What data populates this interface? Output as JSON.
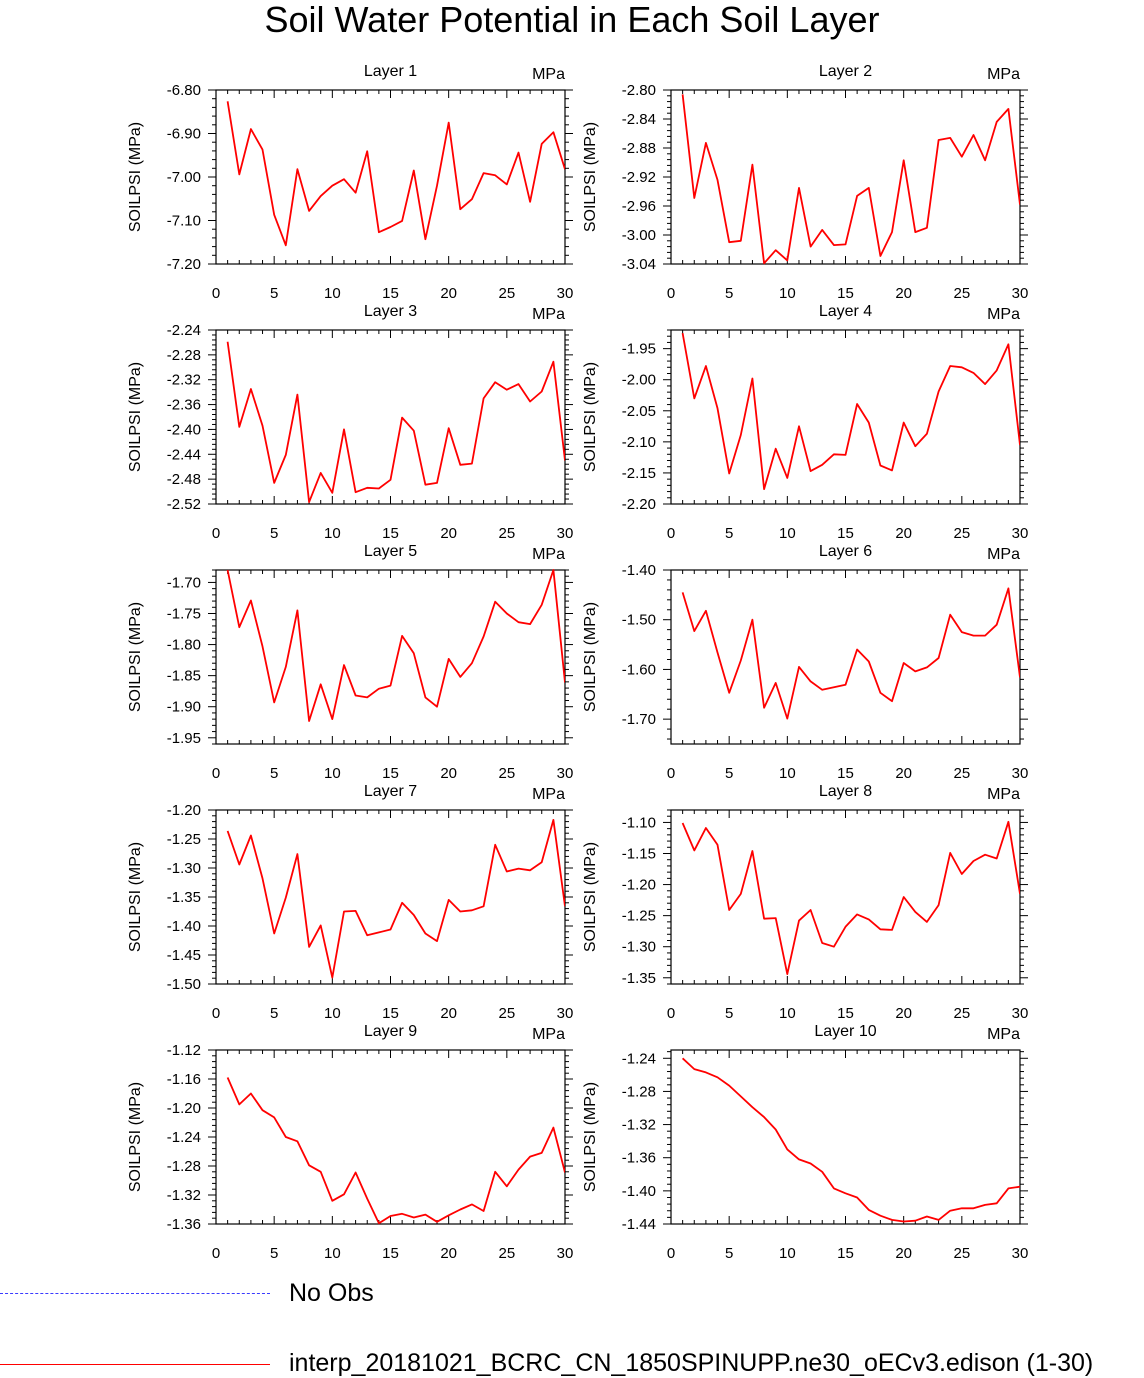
{
  "title": "Soil Water Potential in Each Soil Layer",
  "legend": {
    "items": [
      {
        "label": "No Obs",
        "color": "#3b3bff",
        "style": "dashed"
      },
      {
        "label": "interp_20181021_BCRC_CN_1850SPINUPP.ne30_oECv3.edison (1-30)",
        "color": "#ff0000",
        "style": "solid"
      }
    ]
  },
  "chart_data": [
    {
      "type": "line",
      "title": "Layer 1",
      "units": "MPa",
      "ylabel": "SOILPSI  (MPa)",
      "xlim": [
        0,
        30
      ],
      "ylim": [
        -7.2,
        -6.8
      ],
      "xticks": [
        0,
        5,
        10,
        15,
        20,
        25,
        30
      ],
      "yticks": [
        -6.8,
        -6.9,
        -7.0,
        -7.1,
        -7.2
      ],
      "ytick_labels": [
        "-6.80",
        "-6.90",
        "-7.00",
        "-7.10",
        "-7.20"
      ],
      "x": [
        1,
        2,
        3,
        4,
        5,
        6,
        7,
        8,
        9,
        10,
        11,
        12,
        13,
        14,
        15,
        16,
        17,
        18,
        19,
        20,
        21,
        22,
        23,
        24,
        25,
        26,
        27,
        28,
        29,
        30
      ],
      "values": [
        -6.826,
        -6.994,
        -6.89,
        -6.937,
        -7.087,
        -7.157,
        -6.982,
        -7.078,
        -7.044,
        -7.02,
        -7.005,
        -7.036,
        -6.941,
        -7.127,
        -7.115,
        -7.101,
        -6.985,
        -7.143,
        -7.02,
        -6.875,
        -7.074,
        -7.051,
        -6.991,
        -6.996,
        -7.017,
        -6.944,
        -7.057,
        -6.924,
        -6.897,
        -6.982
      ]
    },
    {
      "type": "line",
      "title": "Layer 2",
      "units": "MPa",
      "ylabel": "SOILPSI  (MPa)",
      "xlim": [
        0,
        30
      ],
      "ylim": [
        -3.04,
        -2.8
      ],
      "xticks": [
        0,
        5,
        10,
        15,
        20,
        25,
        30
      ],
      "yticks": [
        -2.8,
        -2.84,
        -2.88,
        -2.92,
        -2.96,
        -3.0,
        -3.04
      ],
      "ytick_labels": [
        "-2.80",
        "-2.84",
        "-2.88",
        "-2.92",
        "-2.96",
        "-3.00",
        "-3.04"
      ],
      "x": [
        1,
        2,
        3,
        4,
        5,
        6,
        7,
        8,
        9,
        10,
        11,
        12,
        13,
        14,
        15,
        16,
        17,
        18,
        19,
        20,
        21,
        22,
        23,
        24,
        25,
        26,
        27,
        28,
        29,
        30
      ],
      "values": [
        -2.806,
        -2.949,
        -2.873,
        -2.924,
        -3.01,
        -3.008,
        -2.903,
        -3.039,
        -3.021,
        -3.035,
        -2.935,
        -3.016,
        -2.993,
        -3.014,
        -3.013,
        -2.946,
        -2.935,
        -3.029,
        -2.996,
        -2.897,
        -2.996,
        -2.99,
        -2.869,
        -2.866,
        -2.892,
        -2.862,
        -2.897,
        -2.844,
        -2.826,
        -2.958
      ]
    },
    {
      "type": "line",
      "title": "Layer 3",
      "units": "MPa",
      "ylabel": "SOILPSI  (MPa)",
      "xlim": [
        0,
        30
      ],
      "ylim": [
        -2.52,
        -2.24
      ],
      "xticks": [
        0,
        5,
        10,
        15,
        20,
        25,
        30
      ],
      "yticks": [
        -2.24,
        -2.28,
        -2.32,
        -2.36,
        -2.4,
        -2.44,
        -2.48,
        -2.52
      ],
      "ytick_labels": [
        "-2.24",
        "-2.28",
        "-2.32",
        "-2.36",
        "-2.40",
        "-2.44",
        "-2.48",
        "-2.52"
      ],
      "x": [
        1,
        2,
        3,
        4,
        5,
        6,
        7,
        8,
        9,
        10,
        11,
        12,
        13,
        14,
        15,
        16,
        17,
        18,
        19,
        20,
        21,
        22,
        23,
        24,
        25,
        26,
        27,
        28,
        29,
        30
      ],
      "values": [
        -2.259,
        -2.396,
        -2.335,
        -2.394,
        -2.486,
        -2.441,
        -2.344,
        -2.517,
        -2.47,
        -2.502,
        -2.4,
        -2.501,
        -2.494,
        -2.495,
        -2.481,
        -2.381,
        -2.402,
        -2.489,
        -2.486,
        -2.398,
        -2.457,
        -2.455,
        -2.35,
        -2.324,
        -2.336,
        -2.327,
        -2.355,
        -2.339,
        -2.291,
        -2.45
      ]
    },
    {
      "type": "line",
      "title": "Layer 4",
      "units": "MPa",
      "ylabel": "SOILPSI  (MPa)",
      "xlim": [
        0,
        30
      ],
      "ylim": [
        -2.2,
        -1.92
      ],
      "xticks": [
        0,
        5,
        10,
        15,
        20,
        25,
        30
      ],
      "yticks": [
        -1.95,
        -2.0,
        -2.05,
        -2.1,
        -2.15,
        -2.2
      ],
      "ytick_labels": [
        "-1.95",
        "-2.00",
        "-2.05",
        "-2.10",
        "-2.15",
        "-2.20"
      ],
      "x": [
        1,
        2,
        3,
        4,
        5,
        6,
        7,
        8,
        9,
        10,
        11,
        12,
        13,
        14,
        15,
        16,
        17,
        18,
        19,
        20,
        21,
        22,
        23,
        24,
        25,
        26,
        27,
        28,
        29,
        30
      ],
      "values": [
        -1.925,
        -2.03,
        -1.978,
        -2.046,
        -2.151,
        -2.089,
        -1.998,
        -2.176,
        -2.111,
        -2.158,
        -2.075,
        -2.147,
        -2.137,
        -2.12,
        -2.121,
        -2.039,
        -2.069,
        -2.138,
        -2.146,
        -2.069,
        -2.107,
        -2.087,
        -2.019,
        -1.978,
        -1.98,
        -1.989,
        -2.007,
        -1.985,
        -1.943,
        -2.105
      ]
    },
    {
      "type": "line",
      "title": "Layer 5",
      "units": "MPa",
      "ylabel": "SOILPSI  (MPa)",
      "xlim": [
        0,
        30
      ],
      "ylim": [
        -1.96,
        -1.68
      ],
      "xticks": [
        0,
        5,
        10,
        15,
        20,
        25,
        30
      ],
      "yticks": [
        -1.7,
        -1.75,
        -1.8,
        -1.85,
        -1.9,
        -1.95
      ],
      "ytick_labels": [
        "-1.70",
        "-1.75",
        "-1.80",
        "-1.85",
        "-1.90",
        "-1.95"
      ],
      "x": [
        1,
        2,
        3,
        4,
        5,
        6,
        7,
        8,
        9,
        10,
        11,
        12,
        13,
        14,
        15,
        16,
        17,
        18,
        19,
        20,
        21,
        22,
        23,
        24,
        25,
        26,
        27,
        28,
        29,
        30
      ],
      "values": [
        -1.68,
        -1.772,
        -1.729,
        -1.803,
        -1.893,
        -1.836,
        -1.745,
        -1.923,
        -1.864,
        -1.92,
        -1.833,
        -1.882,
        -1.885,
        -1.871,
        -1.866,
        -1.786,
        -1.814,
        -1.885,
        -1.9,
        -1.823,
        -1.852,
        -1.83,
        -1.787,
        -1.731,
        -1.75,
        -1.764,
        -1.767,
        -1.736,
        -1.68,
        -1.861
      ]
    },
    {
      "type": "line",
      "title": "Layer 6",
      "units": "MPa",
      "ylabel": "SOILPSI  (MPa)",
      "xlim": [
        0,
        30
      ],
      "ylim": [
        -1.75,
        -1.4
      ],
      "xticks": [
        0,
        5,
        10,
        15,
        20,
        25,
        30
      ],
      "yticks": [
        -1.4,
        -1.5,
        -1.6,
        -1.7
      ],
      "ytick_labels": [
        "-1.40",
        "-1.50",
        "-1.60",
        "-1.70"
      ],
      "x": [
        1,
        2,
        3,
        4,
        5,
        6,
        7,
        8,
        9,
        10,
        11,
        12,
        13,
        14,
        15,
        16,
        17,
        18,
        19,
        20,
        21,
        22,
        23,
        24,
        25,
        26,
        27,
        28,
        29,
        30
      ],
      "values": [
        -1.445,
        -1.523,
        -1.482,
        -1.566,
        -1.647,
        -1.582,
        -1.5,
        -1.677,
        -1.627,
        -1.699,
        -1.595,
        -1.624,
        -1.641,
        -1.636,
        -1.631,
        -1.56,
        -1.584,
        -1.647,
        -1.664,
        -1.587,
        -1.604,
        -1.596,
        -1.577,
        -1.49,
        -1.525,
        -1.532,
        -1.532,
        -1.51,
        -1.437,
        -1.616
      ]
    },
    {
      "type": "line",
      "title": "Layer 7",
      "units": "MPa",
      "ylabel": "SOILPSI  (MPa)",
      "xlim": [
        0,
        30
      ],
      "ylim": [
        -1.5,
        -1.2
      ],
      "xticks": [
        0,
        5,
        10,
        15,
        20,
        25,
        30
      ],
      "yticks": [
        -1.2,
        -1.25,
        -1.3,
        -1.35,
        -1.4,
        -1.45,
        -1.5
      ],
      "ytick_labels": [
        "-1.20",
        "-1.25",
        "-1.30",
        "-1.35",
        "-1.40",
        "-1.45",
        "-1.50"
      ],
      "x": [
        1,
        2,
        3,
        4,
        5,
        6,
        7,
        8,
        9,
        10,
        11,
        12,
        13,
        14,
        15,
        16,
        17,
        18,
        19,
        20,
        21,
        22,
        23,
        24,
        25,
        26,
        27,
        28,
        29,
        30
      ],
      "values": [
        -1.236,
        -1.294,
        -1.244,
        -1.318,
        -1.413,
        -1.351,
        -1.276,
        -1.436,
        -1.399,
        -1.489,
        -1.375,
        -1.374,
        -1.416,
        -1.411,
        -1.406,
        -1.36,
        -1.381,
        -1.413,
        -1.426,
        -1.355,
        -1.375,
        -1.373,
        -1.366,
        -1.26,
        -1.306,
        -1.301,
        -1.304,
        -1.29,
        -1.217,
        -1.366
      ]
    },
    {
      "type": "line",
      "title": "Layer 8",
      "units": "MPa",
      "ylabel": "SOILPSI  (MPa)",
      "xlim": [
        0,
        30
      ],
      "ylim": [
        -1.36,
        -1.08
      ],
      "xticks": [
        0,
        5,
        10,
        15,
        20,
        25,
        30
      ],
      "yticks": [
        -1.1,
        -1.15,
        -1.2,
        -1.25,
        -1.3,
        -1.35
      ],
      "ytick_labels": [
        "-1.10",
        "-1.15",
        "-1.20",
        "-1.25",
        "-1.30",
        "-1.35"
      ],
      "x": [
        1,
        2,
        3,
        4,
        5,
        6,
        7,
        8,
        9,
        10,
        11,
        12,
        13,
        14,
        15,
        16,
        17,
        18,
        19,
        20,
        21,
        22,
        23,
        24,
        25,
        26,
        27,
        28,
        29,
        30
      ],
      "values": [
        -1.101,
        -1.145,
        -1.109,
        -1.136,
        -1.241,
        -1.215,
        -1.146,
        -1.255,
        -1.254,
        -1.344,
        -1.258,
        -1.241,
        -1.294,
        -1.3,
        -1.268,
        -1.248,
        -1.256,
        -1.272,
        -1.273,
        -1.22,
        -1.244,
        -1.26,
        -1.233,
        -1.149,
        -1.183,
        -1.162,
        -1.152,
        -1.158,
        -1.099,
        -1.215
      ]
    },
    {
      "type": "line",
      "title": "Layer 9",
      "units": "MPa",
      "ylabel": "SOILPSI  (MPa)",
      "xlim": [
        0,
        30
      ],
      "ylim": [
        -1.36,
        -1.12
      ],
      "xticks": [
        0,
        5,
        10,
        15,
        20,
        25,
        30
      ],
      "yticks": [
        -1.12,
        -1.16,
        -1.2,
        -1.24,
        -1.28,
        -1.32,
        -1.36
      ],
      "ytick_labels": [
        "-1.12",
        "-1.16",
        "-1.20",
        "-1.24",
        "-1.28",
        "-1.32",
        "-1.36"
      ],
      "x": [
        1,
        2,
        3,
        4,
        5,
        6,
        7,
        8,
        9,
        10,
        11,
        12,
        13,
        14,
        15,
        16,
        17,
        18,
        19,
        20,
        21,
        22,
        23,
        24,
        25,
        26,
        27,
        28,
        29,
        30
      ],
      "values": [
        -1.158,
        -1.195,
        -1.18,
        -1.203,
        -1.213,
        -1.24,
        -1.246,
        -1.279,
        -1.288,
        -1.328,
        -1.319,
        -1.289,
        -1.325,
        -1.359,
        -1.349,
        -1.346,
        -1.351,
        -1.347,
        -1.357,
        -1.348,
        -1.34,
        -1.333,
        -1.342,
        -1.288,
        -1.308,
        -1.285,
        -1.267,
        -1.262,
        -1.227,
        -1.289
      ]
    },
    {
      "type": "line",
      "title": "Layer 10",
      "units": "MPa",
      "ylabel": "SOILPSI  (MPa)",
      "xlim": [
        0,
        30
      ],
      "ylim": [
        -1.44,
        -1.23
      ],
      "xticks": [
        0,
        5,
        10,
        15,
        20,
        25,
        30
      ],
      "yticks": [
        -1.24,
        -1.28,
        -1.32,
        -1.36,
        -1.4,
        -1.44
      ],
      "ytick_labels": [
        "-1.24",
        "-1.28",
        "-1.32",
        "-1.36",
        "-1.40",
        "-1.44"
      ],
      "x": [
        1,
        2,
        3,
        4,
        5,
        6,
        7,
        8,
        9,
        10,
        11,
        12,
        13,
        14,
        15,
        16,
        17,
        18,
        19,
        20,
        21,
        22,
        23,
        24,
        25,
        26,
        27,
        28,
        29,
        30
      ],
      "values": [
        -1.24,
        -1.253,
        -1.257,
        -1.263,
        -1.273,
        -1.286,
        -1.299,
        -1.311,
        -1.326,
        -1.35,
        -1.362,
        -1.367,
        -1.377,
        -1.397,
        -1.403,
        -1.408,
        -1.423,
        -1.43,
        -1.435,
        -1.437,
        -1.436,
        -1.431,
        -1.435,
        -1.424,
        -1.421,
        -1.421,
        -1.417,
        -1.415,
        -1.397,
        -1.395
      ]
    }
  ]
}
